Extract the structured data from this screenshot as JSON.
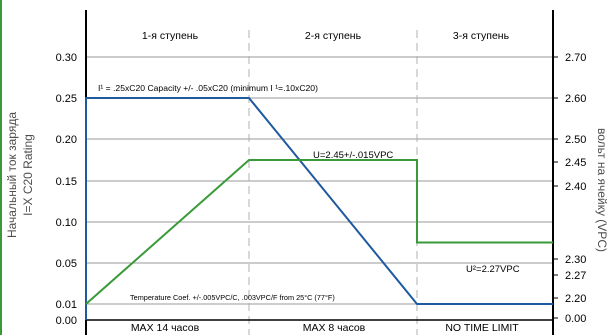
{
  "chart_data": {
    "type": "line",
    "ylabel_left": [
      "Начальный ток заряда",
      "I=X C20 Rating"
    ],
    "ylabel_right": "вольт на ячейку (VPC)",
    "yticks_left": [
      "0.30",
      "0.25",
      "0.20",
      "0.15",
      "0.10",
      "0.05",
      "0.01",
      "0.00"
    ],
    "yticks_right": [
      "2.70",
      "2.60",
      "2.50",
      "2.45",
      "2.40",
      "2.30",
      "2.27",
      "2.20",
      "0.00"
    ],
    "stage_labels": [
      "1-я ступень",
      "2-я ступень",
      "3-я ступень"
    ],
    "stage_durations": [
      "MAX 14 часов",
      "MAX 8 часов",
      "NO TIME LIMIT"
    ],
    "annotations": {
      "current": "I¹ = .25xC20 Capacity +/- .05xC20 (minimum I    ¹=.10xC20)",
      "voltage_stage2": "U=2.45+/-.015VPC",
      "voltage_stage3": "U²=2.27VPC",
      "temperature": "Temperature Coef. +/-.005VPC/C, .003VPC/F from 25°C (77°F)"
    },
    "x_breakpoints": [
      0,
      1,
      2,
      3
    ],
    "series": [
      {
        "color": "#1f5aa0",
        "x": [
          0,
          0,
          1,
          2,
          3
        ],
        "y": [
          0.0,
          0.25,
          0.25,
          0.01,
          0.01
        ]
      },
      {
        "color": "#3a9a3a",
        "x": [
          0,
          1,
          2,
          2,
          3
        ],
        "y": [
          0.01,
          0.175,
          0.175,
          0.075,
          0.075
        ]
      }
    ],
    "grid": true,
    "colors": {
      "current_line": "#1f5aa0",
      "voltage_line": "#3a9a3a",
      "grid": "#9a9a9a",
      "axes": "#000000",
      "divider": "#b0b0b0"
    }
  }
}
